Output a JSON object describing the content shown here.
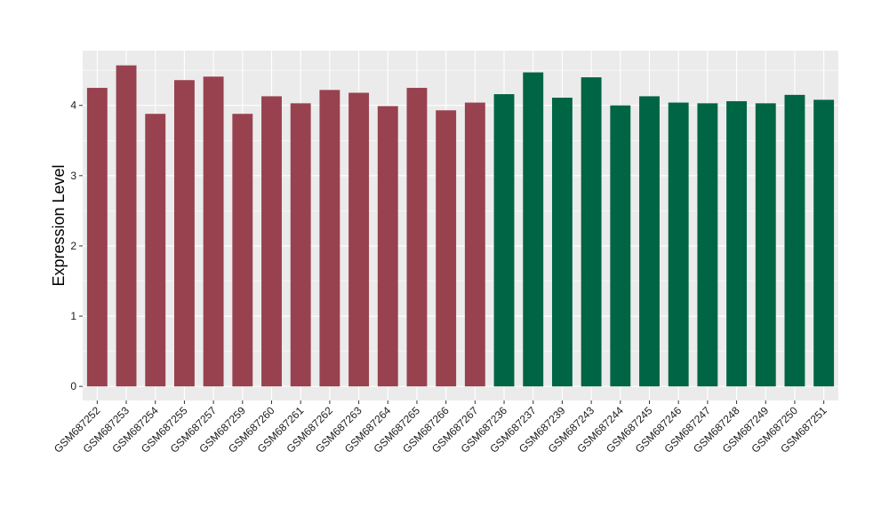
{
  "chart_data": {
    "type": "bar",
    "title": "",
    "xlabel": "",
    "ylabel": "Expression Level",
    "ylim": [
      -0.2,
      4.78
    ],
    "yticks": [
      0,
      1,
      2,
      3,
      4
    ],
    "grid": true,
    "legend": "none",
    "background": "#ebebeb",
    "gridline_color": "#ffffff",
    "categories": [
      "GSM687252",
      "GSM687253",
      "GSM687254",
      "GSM687255",
      "GSM687257",
      "GSM687259",
      "GSM687260",
      "GSM687261",
      "GSM687262",
      "GSM687263",
      "GSM687264",
      "GSM687265",
      "GSM687266",
      "GSM687267",
      "GSM687236",
      "GSM687237",
      "GSM687239",
      "GSM687243",
      "GSM687244",
      "GSM687245",
      "GSM687246",
      "GSM687247",
      "GSM687248",
      "GSM687249",
      "GSM687250",
      "GSM687251"
    ],
    "values": [
      4.25,
      4.57,
      3.88,
      4.36,
      4.41,
      3.88,
      4.13,
      4.03,
      4.22,
      4.18,
      3.99,
      4.25,
      3.93,
      4.04,
      4.16,
      4.47,
      4.11,
      4.4,
      4.0,
      4.13,
      4.04,
      4.03,
      4.06,
      4.03,
      4.15,
      4.08
    ],
    "bar_colors": [
      "#98424f",
      "#98424f",
      "#98424f",
      "#98424f",
      "#98424f",
      "#98424f",
      "#98424f",
      "#98424f",
      "#98424f",
      "#98424f",
      "#98424f",
      "#98424f",
      "#98424f",
      "#98424f",
      "#006544",
      "#006544",
      "#006544",
      "#006544",
      "#006544",
      "#006544",
      "#006544",
      "#006544",
      "#006544",
      "#006544",
      "#006544",
      "#006544"
    ]
  }
}
